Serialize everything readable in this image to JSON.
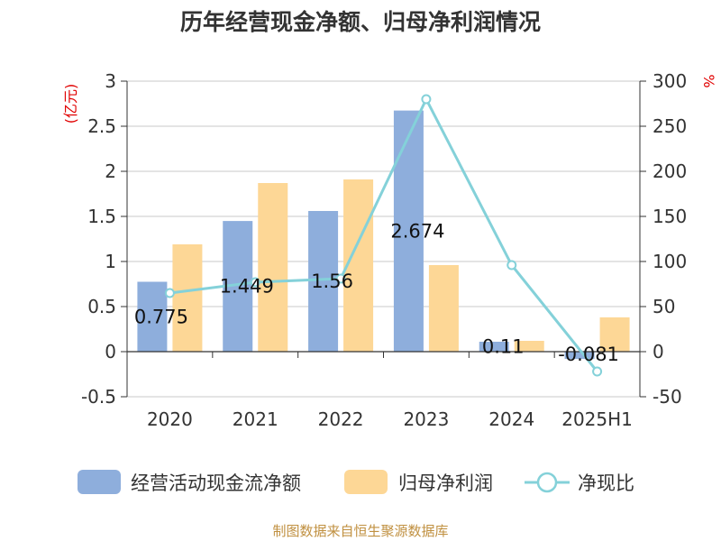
{
  "chart_data": {
    "type": "bar",
    "title": "历年经营现金净额、归母净利润情况",
    "categories": [
      "2020",
      "2021",
      "2022",
      "2023",
      "2024",
      "2025H1"
    ],
    "y_left": {
      "unit_label": "(亿元)",
      "range": [
        -0.5,
        3
      ],
      "ticks": [
        "-0.5",
        "0",
        "0.5",
        "1",
        "1.5",
        "2",
        "2.5",
        "3"
      ],
      "tick_values": [
        -0.5,
        0,
        0.5,
        1,
        1.5,
        2,
        2.5,
        3
      ]
    },
    "y_right": {
      "unit_label": "%",
      "range": [
        -50,
        300
      ],
      "ticks": [
        "-50",
        "0",
        "50",
        "100",
        "150",
        "200",
        "250",
        "300"
      ],
      "tick_values": [
        -50,
        0,
        50,
        100,
        150,
        200,
        250,
        300
      ]
    },
    "series": [
      {
        "name": "经营活动现金流净额",
        "kind": "bar",
        "axis": "left",
        "color": "#8eaedc",
        "values": [
          0.775,
          1.449,
          1.56,
          2.674,
          0.11,
          -0.081
        ],
        "labels": [
          "0.775",
          "1.449",
          "1.56",
          "2.674",
          "0.11",
          "-0.081"
        ]
      },
      {
        "name": "归母净利润",
        "kind": "bar",
        "axis": "left",
        "color": "#fdd796",
        "values": [
          1.19,
          1.87,
          1.91,
          0.96,
          0.12,
          0.38
        ]
      },
      {
        "name": "净现比",
        "kind": "line",
        "axis": "right",
        "color": "#84d1d9",
        "values": [
          65,
          77,
          81,
          280,
          96,
          -22
        ]
      }
    ],
    "grid": true,
    "legend_position": "bottom"
  },
  "footer": {
    "source": "制图数据来自恒生聚源数据库"
  }
}
